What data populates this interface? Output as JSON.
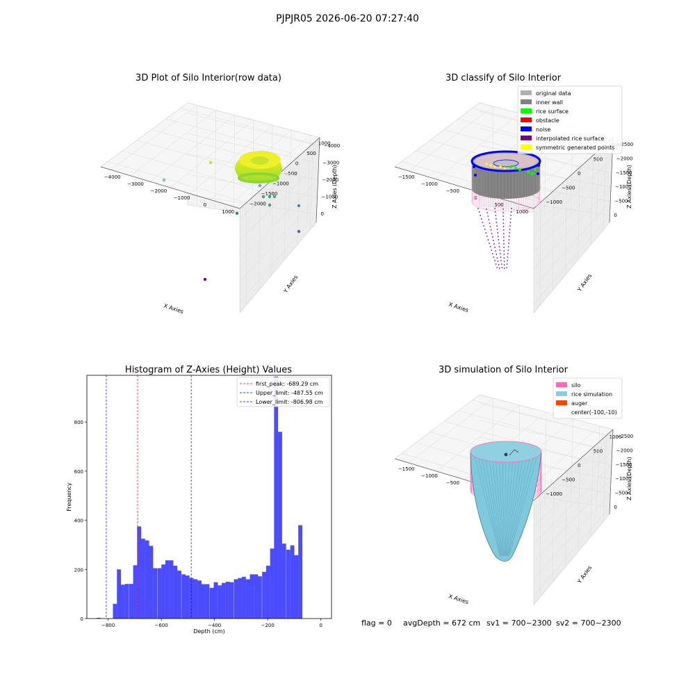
{
  "figure": {
    "suptitle": "PJPJR05 2026-06-20 07:27:40",
    "footer": {
      "flag": "flag = 0",
      "avg_depth": "avgDepth = 672 cm",
      "sv1": "sv1 = 700~2300",
      "sv2": "sv2 = 700~2300"
    }
  },
  "panels": {
    "p1": {
      "title": "3D Plot of Silo Interior(row data)",
      "xlabel": "X Axies",
      "ylabel": "Y Axies",
      "zlabel": "Z Axies (Depth)",
      "xticks": [
        "−4000",
        "−3000",
        "−2000",
        "−1000",
        "0",
        "1000"
      ],
      "yticks": [
        "−2000",
        "−1500",
        "−1000",
        "−500",
        "0",
        "500",
        "1000"
      ],
      "zticks": [
        "0",
        "−1000",
        "−2000",
        "−3000",
        "−4000"
      ]
    },
    "p2": {
      "title": "3D classify of Silo Interior",
      "xlabel": "X Axies",
      "ylabel": "Y Axies",
      "zlabel": "Z Axies (Depth)",
      "xticks": [
        "−1500",
        "−1000",
        "−500",
        "0",
        "500",
        "1000"
      ],
      "yticks": [
        "−1000",
        "−500",
        "0",
        "500",
        "1000"
      ],
      "zticks": [
        "0",
        "−500",
        "−1000",
        "−1500",
        "−2000",
        "−2500"
      ],
      "legend": [
        {
          "label": "original data",
          "color": "#b0b0b0"
        },
        {
          "label": "inner wall",
          "color": "#808080"
        },
        {
          "label": "rice surface",
          "color": "#00ff00"
        },
        {
          "label": "obstacle",
          "color": "#ff0000"
        },
        {
          "label": "noise",
          "color": "#0000ff"
        },
        {
          "label": "interpolated rice surface",
          "color": "#800080"
        },
        {
          "label": "symmetric generated points",
          "color": "#ffff00"
        }
      ]
    },
    "p4": {
      "title": "3D simulation of Silo Interior",
      "xlabel": "X Axies",
      "ylabel": "Y Axies",
      "zlabel": "Z Axies (Depth)",
      "xticks": [
        "−1500",
        "−1000",
        "−500",
        "0",
        "500",
        "1000"
      ],
      "yticks": [
        "−1000",
        "−500",
        "0",
        "500",
        "1000"
      ],
      "zticks": [
        "0",
        "−500",
        "−1000",
        "−1500",
        "−2000",
        "−2500"
      ],
      "legend": [
        {
          "label": "silo",
          "color": "#ff69b4"
        },
        {
          "label": "rice simulation",
          "color": "#87ceeb"
        },
        {
          "label": "auger",
          "color": "#ff4500"
        },
        {
          "label": "center(-100,-10)",
          "color": ""
        }
      ]
    }
  },
  "chart_data": [
    {
      "type": "scatter",
      "title": "3D Plot of Silo Interior(row data)",
      "xlabel": "X Axies",
      "ylabel": "Y Axies",
      "zlabel": "Z Axies (Depth)",
      "xlim": [
        -4000,
        1000
      ],
      "ylim": [
        -2000,
        1000
      ],
      "zlim": [
        -4000,
        0
      ],
      "grid": true,
      "colormap": "viridis (by depth)"
    },
    {
      "type": "scatter",
      "title": "3D classify of Silo Interior",
      "xlabel": "X Axies",
      "ylabel": "Y Axies",
      "zlabel": "Z Axies (Depth)",
      "xlim": [
        -1500,
        1000
      ],
      "ylim": [
        -1000,
        1000
      ],
      "zlim": [
        -2500,
        0
      ],
      "grid": true,
      "legend_position": "top-right",
      "series": [
        {
          "name": "original data",
          "color": "#b0b0b0"
        },
        {
          "name": "inner wall",
          "color": "#808080"
        },
        {
          "name": "rice surface",
          "color": "#00ff00"
        },
        {
          "name": "obstacle",
          "color": "#ff0000"
        },
        {
          "name": "noise",
          "color": "#0000ff"
        },
        {
          "name": "interpolated rice surface",
          "color": "#800080"
        },
        {
          "name": "symmetric generated points",
          "color": "#ffff00"
        }
      ]
    },
    {
      "type": "bar",
      "title": "Histogram of Z-Axies (Height) Values",
      "xlabel": "Depth (cm)",
      "ylabel": "Frequency",
      "xlim": [
        -880,
        40
      ],
      "ylim": [
        0,
        990
      ],
      "xticks": [
        -800,
        -600,
        -400,
        -200,
        0
      ],
      "yticks": [
        0,
        200,
        400,
        600,
        800
      ],
      "bar_color": "#0000ff",
      "bin_width": 15.15,
      "bins": [
        {
          "x": -843,
          "count": 3
        },
        {
          "x": -782,
          "count": 60
        },
        {
          "x": -767,
          "count": 200
        },
        {
          "x": -752,
          "count": 138
        },
        {
          "x": -737,
          "count": 141
        },
        {
          "x": -721,
          "count": 141
        },
        {
          "x": -706,
          "count": 217
        },
        {
          "x": -691,
          "count": 375
        },
        {
          "x": -676,
          "count": 325
        },
        {
          "x": -661,
          "count": 318
        },
        {
          "x": -646,
          "count": 296
        },
        {
          "x": -631,
          "count": 205
        },
        {
          "x": -615,
          "count": 205
        },
        {
          "x": -600,
          "count": 220
        },
        {
          "x": -585,
          "count": 237
        },
        {
          "x": -570,
          "count": 237
        },
        {
          "x": -555,
          "count": 215
        },
        {
          "x": -540,
          "count": 195
        },
        {
          "x": -524,
          "count": 180
        },
        {
          "x": -509,
          "count": 175
        },
        {
          "x": -494,
          "count": 165
        },
        {
          "x": -479,
          "count": 160
        },
        {
          "x": -464,
          "count": 155
        },
        {
          "x": -449,
          "count": 140
        },
        {
          "x": -434,
          "count": 140
        },
        {
          "x": -418,
          "count": 125
        },
        {
          "x": -403,
          "count": 148
        },
        {
          "x": -388,
          "count": 135
        },
        {
          "x": -373,
          "count": 145
        },
        {
          "x": -358,
          "count": 150
        },
        {
          "x": -343,
          "count": 148
        },
        {
          "x": -327,
          "count": 160
        },
        {
          "x": -312,
          "count": 165
        },
        {
          "x": -297,
          "count": 170
        },
        {
          "x": -282,
          "count": 160
        },
        {
          "x": -267,
          "count": 180
        },
        {
          "x": -252,
          "count": 180
        },
        {
          "x": -237,
          "count": 172
        },
        {
          "x": -221,
          "count": 190
        },
        {
          "x": -206,
          "count": 215
        },
        {
          "x": -191,
          "count": 285
        },
        {
          "x": -176,
          "count": 985
        },
        {
          "x": -161,
          "count": 760
        },
        {
          "x": -146,
          "count": 305
        },
        {
          "x": -130,
          "count": 280
        },
        {
          "x": -115,
          "count": 298
        },
        {
          "x": -100,
          "count": 258
        },
        {
          "x": -85,
          "count": 380
        }
      ],
      "vlines": [
        {
          "label": "first_peak: -689.29 cm",
          "x": -689.29,
          "color": "#ff0000"
        },
        {
          "label": "Upper_limit: -487.55 cm",
          "x": -487.55,
          "color": "#0000ff"
        },
        {
          "label": "Lower_limit: -806.98 cm",
          "x": -806.98,
          "color": "#0000ff"
        }
      ],
      "legend_position": "top-right"
    },
    {
      "type": "surface",
      "title": "3D simulation of Silo Interior",
      "xlabel": "X Axies",
      "ylabel": "Y Axies",
      "zlabel": "Z Axies (Depth)",
      "xlim": [
        -1500,
        1000
      ],
      "ylim": [
        -1000,
        1000
      ],
      "zlim": [
        -2500,
        0
      ],
      "grid": true,
      "legend_position": "top-right",
      "series": [
        {
          "name": "silo",
          "color": "#ff69b4"
        },
        {
          "name": "rice simulation",
          "color": "#87ceeb"
        },
        {
          "name": "auger",
          "color": "#ff4500"
        },
        {
          "name": "center(-100,-10)"
        }
      ]
    }
  ]
}
